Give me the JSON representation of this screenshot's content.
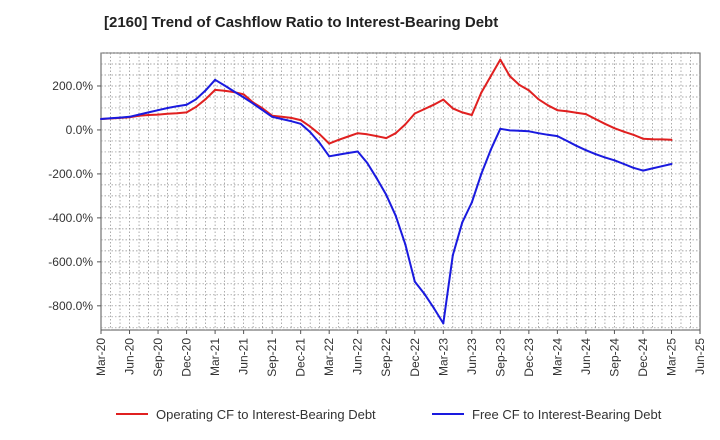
{
  "chart_data": {
    "type": "line",
    "title": "[2160]  Trend of Cashflow Ratio to Interest-Bearing Debt",
    "x_tick_labels": [
      "Mar-20",
      "Jun-20",
      "Sep-20",
      "Dec-20",
      "Mar-21",
      "Jun-21",
      "Sep-21",
      "Dec-21",
      "Mar-22",
      "Jun-22",
      "Sep-22",
      "Dec-22",
      "Mar-23",
      "Jun-23",
      "Sep-23",
      "Dec-23",
      "Mar-24",
      "Jun-24",
      "Sep-24",
      "Dec-24",
      "Mar-25",
      "Jun-25"
    ],
    "y_ticks": [
      200,
      0,
      -200,
      -400,
      -600,
      -800
    ],
    "y_tick_labels": [
      "200.0%",
      "0.0%",
      "-200.0%",
      "-400.0%",
      "-600.0%",
      "-800.0%"
    ],
    "ylim": [
      -910,
      350
    ],
    "grid": true,
    "legend_position": "bottom",
    "series": [
      {
        "name": "Operating CF to Interest-Bearing Debt",
        "color": "#e02020",
        "points": [
          [
            "Mar-20",
            50
          ],
          [
            "Apr-20",
            52
          ],
          [
            "May-20",
            55
          ],
          [
            "Jun-20",
            58
          ],
          [
            "Jul-20",
            65
          ],
          [
            "Aug-20",
            68
          ],
          [
            "Sep-20",
            70
          ],
          [
            "Oct-20",
            74
          ],
          [
            "Nov-20",
            76
          ],
          [
            "Dec-20",
            80
          ],
          [
            "Jan-21",
            105
          ],
          [
            "Feb-21",
            140
          ],
          [
            "Mar-21",
            182
          ],
          [
            "Apr-21",
            178
          ],
          [
            "May-21",
            172
          ],
          [
            "Jun-21",
            162
          ],
          [
            "Jul-21",
            125
          ],
          [
            "Aug-21",
            98
          ],
          [
            "Sep-21",
            65
          ],
          [
            "Oct-21",
            60
          ],
          [
            "Nov-21",
            55
          ],
          [
            "Dec-21",
            45
          ],
          [
            "Jan-22",
            15
          ],
          [
            "Feb-22",
            -20
          ],
          [
            "Mar-22",
            -62
          ],
          [
            "Apr-22",
            -45
          ],
          [
            "May-22",
            -30
          ],
          [
            "Jun-22",
            -15
          ],
          [
            "Jul-22",
            -20
          ],
          [
            "Aug-22",
            -28
          ],
          [
            "Sep-22",
            -37
          ],
          [
            "Oct-22",
            -15
          ],
          [
            "Nov-22",
            25
          ],
          [
            "Dec-22",
            75
          ],
          [
            "Jan-23",
            95
          ],
          [
            "Feb-23",
            115
          ],
          [
            "Mar-23",
            138
          ],
          [
            "Apr-23",
            98
          ],
          [
            "May-23",
            80
          ],
          [
            "Jun-23",
            68
          ],
          [
            "Jul-23",
            170
          ],
          [
            "Aug-23",
            245
          ],
          [
            "Sep-23",
            320
          ],
          [
            "Oct-23",
            245
          ],
          [
            "Nov-23",
            205
          ],
          [
            "Dec-23",
            180
          ],
          [
            "Jan-24",
            140
          ],
          [
            "Feb-24",
            112
          ],
          [
            "Mar-24",
            90
          ],
          [
            "Apr-24",
            85
          ],
          [
            "May-24",
            78
          ],
          [
            "Jun-24",
            72
          ],
          [
            "Jul-24",
            50
          ],
          [
            "Aug-24",
            28
          ],
          [
            "Sep-24",
            8
          ],
          [
            "Oct-24",
            -8
          ],
          [
            "Nov-24",
            -22
          ],
          [
            "Dec-24",
            -40
          ],
          [
            "Jan-25",
            -42
          ],
          [
            "Feb-25",
            -43
          ],
          [
            "Mar-25",
            -45
          ]
        ]
      },
      {
        "name": "Free CF to Interest-Bearing Debt",
        "color": "#1a1adf",
        "points": [
          [
            "Mar-20",
            50
          ],
          [
            "Apr-20",
            53
          ],
          [
            "May-20",
            56
          ],
          [
            "Jun-20",
            60
          ],
          [
            "Jul-20",
            70
          ],
          [
            "Aug-20",
            80
          ],
          [
            "Sep-20",
            90
          ],
          [
            "Oct-20",
            100
          ],
          [
            "Nov-20",
            108
          ],
          [
            "Dec-20",
            115
          ],
          [
            "Jan-21",
            140
          ],
          [
            "Feb-21",
            180
          ],
          [
            "Mar-21",
            228
          ],
          [
            "Apr-21",
            202
          ],
          [
            "May-21",
            175
          ],
          [
            "Jun-21",
            148
          ],
          [
            "Jul-21",
            120
          ],
          [
            "Aug-21",
            90
          ],
          [
            "Sep-21",
            60
          ],
          [
            "Oct-21",
            50
          ],
          [
            "Nov-21",
            40
          ],
          [
            "Dec-21",
            28
          ],
          [
            "Jan-22",
            -10
          ],
          [
            "Feb-22",
            -60
          ],
          [
            "Mar-22",
            -120
          ],
          [
            "Apr-22",
            -112
          ],
          [
            "May-22",
            -105
          ],
          [
            "Jun-22",
            -98
          ],
          [
            "Jul-22",
            -150
          ],
          [
            "Aug-22",
            -220
          ],
          [
            "Sep-22",
            -295
          ],
          [
            "Oct-22",
            -390
          ],
          [
            "Nov-22",
            -520
          ],
          [
            "Dec-22",
            -690
          ],
          [
            "Jan-23",
            -745
          ],
          [
            "Feb-23",
            -810
          ],
          [
            "Mar-23",
            -880
          ],
          [
            "Apr-23",
            -570
          ],
          [
            "May-23",
            -420
          ],
          [
            "Jun-23",
            -330
          ],
          [
            "Jul-23",
            -200
          ],
          [
            "Aug-23",
            -90
          ],
          [
            "Sep-23",
            5
          ],
          [
            "Oct-23",
            -2
          ],
          [
            "Nov-23",
            -4
          ],
          [
            "Dec-23",
            -6
          ],
          [
            "Jan-24",
            -15
          ],
          [
            "Feb-24",
            -22
          ],
          [
            "Mar-24",
            -28
          ],
          [
            "Apr-24",
            -50
          ],
          [
            "May-24",
            -72
          ],
          [
            "Jun-24",
            -92
          ],
          [
            "Jul-24",
            -110
          ],
          [
            "Aug-24",
            -125
          ],
          [
            "Sep-24",
            -138
          ],
          [
            "Oct-24",
            -155
          ],
          [
            "Nov-24",
            -172
          ],
          [
            "Dec-24",
            -185
          ],
          [
            "Jan-25",
            -175
          ],
          [
            "Feb-25",
            -165
          ],
          [
            "Mar-25",
            -155
          ]
        ]
      }
    ]
  }
}
